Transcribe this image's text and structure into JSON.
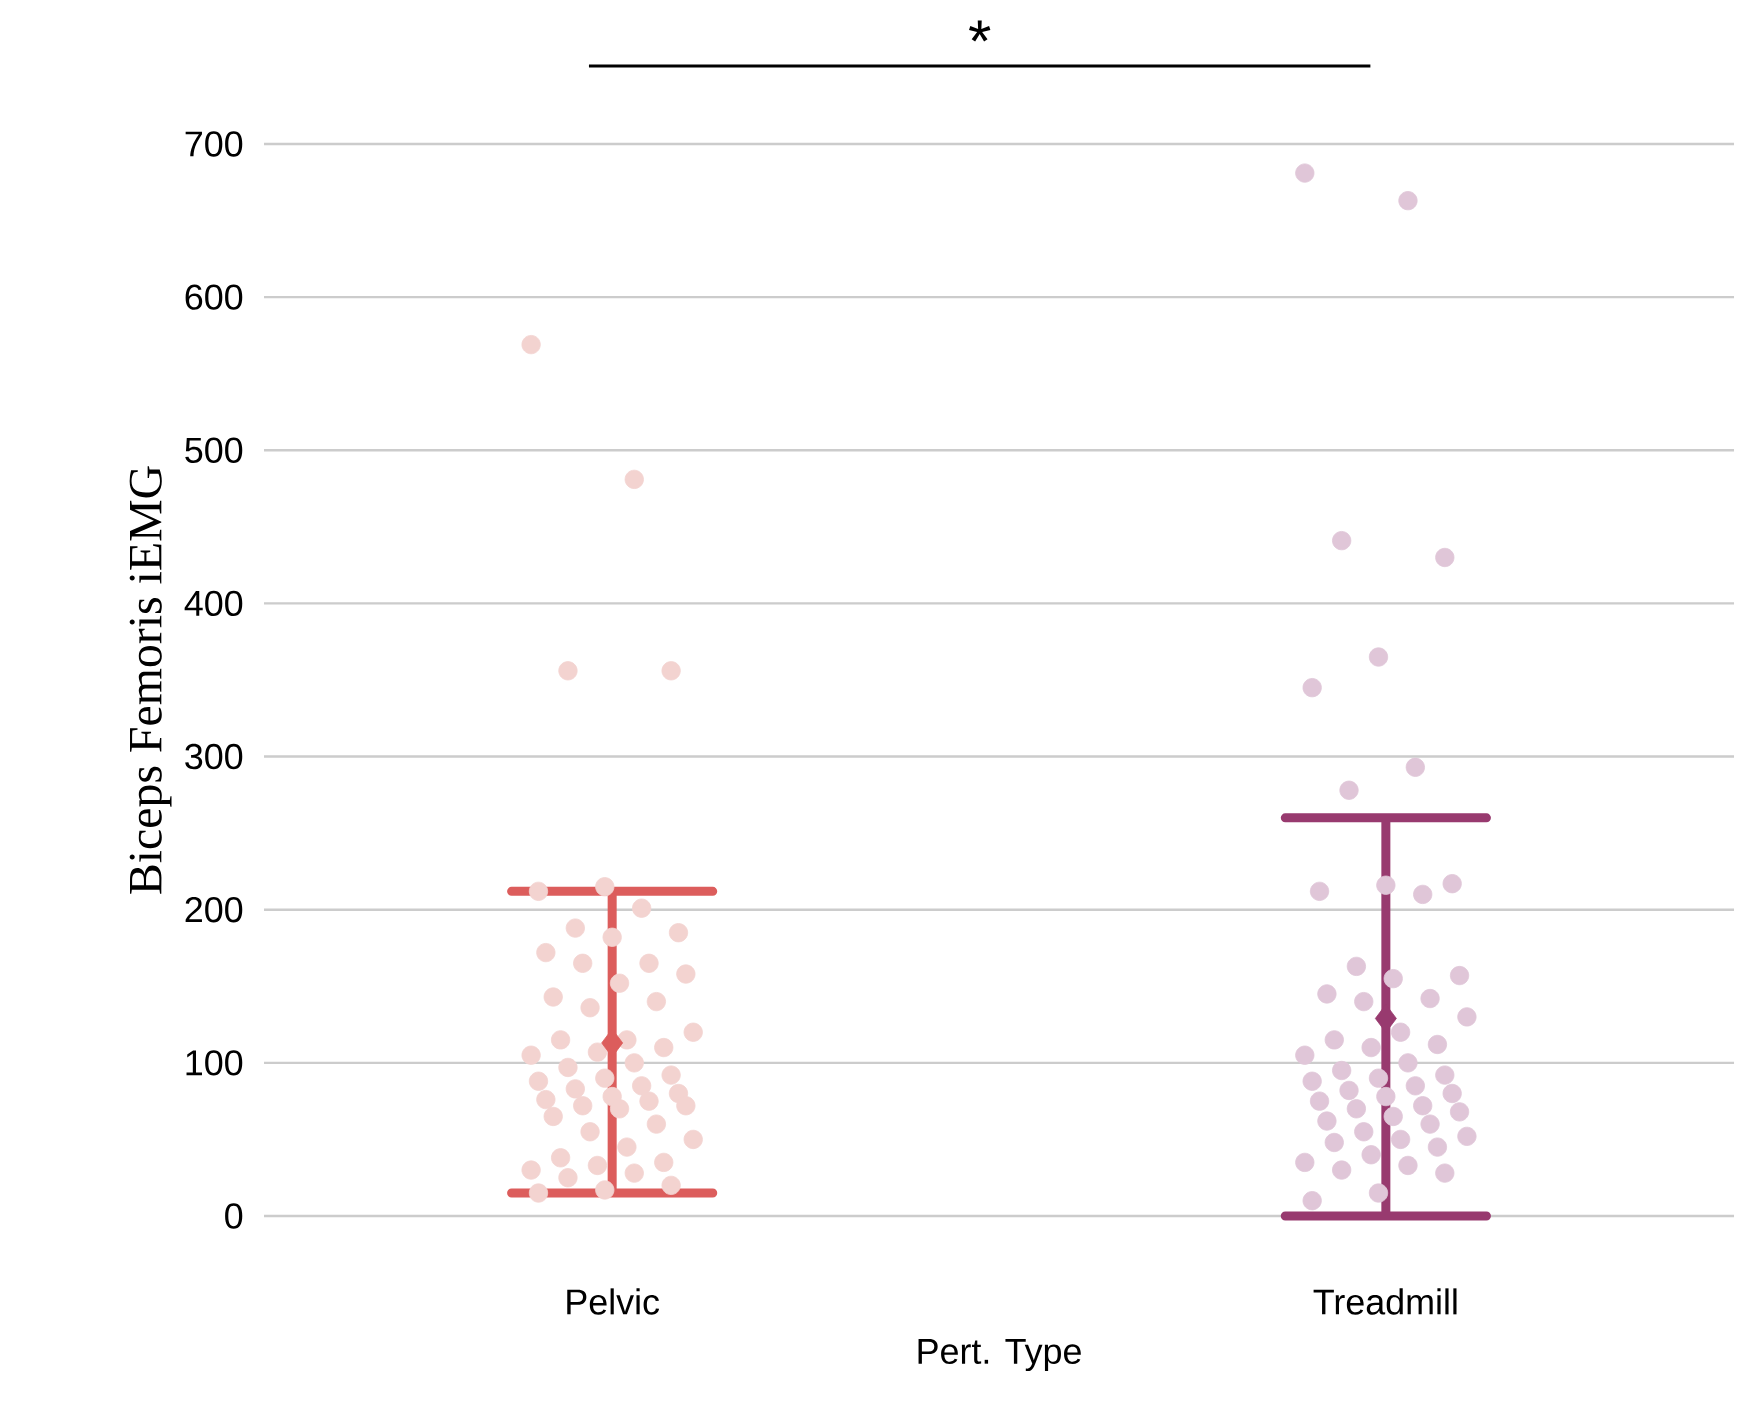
{
  "chart_data": {
    "type": "scatter",
    "xlabel": "Pert. Type",
    "ylabel": "Biceps Femoris iEMG",
    "categories": [
      "Pelvic",
      "Treadmill"
    ],
    "series": [
      {
        "color": "#f3d3d0",
        "x": [
          "Pelvic",
          "Pelvic",
          "Pelvic",
          "Pelvic",
          "Pelvic",
          "Pelvic",
          "Pelvic",
          "Pelvic",
          "Pelvic",
          "Pelvic",
          "Pelvic",
          "Pelvic",
          "Pelvic",
          "Pelvic",
          "Pelvic",
          "Pelvic",
          "Pelvic",
          "Pelvic",
          "Pelvic",
          "Pelvic",
          "Pelvic",
          "Pelvic",
          "Pelvic",
          "Pelvic",
          "Pelvic",
          "Pelvic",
          "Pelvic",
          "Pelvic",
          "Pelvic",
          "Pelvic",
          "Pelvic",
          "Pelvic",
          "Pelvic",
          "Pelvic",
          "Pelvic",
          "Pelvic",
          "Pelvic",
          "Pelvic",
          "Pelvic",
          "Pelvic",
          "Pelvic",
          "Pelvic",
          "Pelvic",
          "Pelvic",
          "Pelvic",
          "Pelvic",
          "Pelvic",
          "Pelvic",
          "Pelvic",
          "Pelvic",
          "Pelvic",
          "Pelvic"
        ],
        "values": [
          569,
          481,
          356,
          356,
          215,
          212,
          201,
          188,
          185,
          182,
          172,
          165,
          165,
          158,
          152,
          143,
          140,
          136,
          120,
          115,
          115,
          110,
          107,
          105,
          100,
          97,
          92,
          90,
          88,
          85,
          83,
          80,
          78,
          76,
          75,
          72,
          72,
          70,
          65,
          60,
          55,
          50,
          45,
          38,
          35,
          33,
          30,
          28,
          25,
          20,
          17,
          15
        ]
      },
      {
        "color": "#e0c6d8",
        "x": [
          "Treadmill",
          "Treadmill",
          "Treadmill",
          "Treadmill",
          "Treadmill",
          "Treadmill",
          "Treadmill",
          "Treadmill",
          "Treadmill",
          "Treadmill",
          "Treadmill",
          "Treadmill",
          "Treadmill",
          "Treadmill",
          "Treadmill",
          "Treadmill",
          "Treadmill",
          "Treadmill",
          "Treadmill",
          "Treadmill",
          "Treadmill",
          "Treadmill",
          "Treadmill",
          "Treadmill",
          "Treadmill",
          "Treadmill",
          "Treadmill",
          "Treadmill",
          "Treadmill",
          "Treadmill",
          "Treadmill",
          "Treadmill",
          "Treadmill",
          "Treadmill",
          "Treadmill",
          "Treadmill",
          "Treadmill",
          "Treadmill",
          "Treadmill",
          "Treadmill",
          "Treadmill",
          "Treadmill",
          "Treadmill",
          "Treadmill",
          "Treadmill",
          "Treadmill",
          "Treadmill",
          "Treadmill",
          "Treadmill",
          "Treadmill",
          "Treadmill",
          "Treadmill"
        ],
        "values": [
          681,
          663,
          441,
          430,
          365,
          345,
          293,
          278,
          217,
          216,
          212,
          210,
          163,
          157,
          155,
          145,
          142,
          140,
          130,
          120,
          115,
          112,
          110,
          105,
          100,
          95,
          92,
          90,
          88,
          85,
          82,
          80,
          78,
          75,
          72,
          70,
          68,
          65,
          62,
          60,
          55,
          52,
          50,
          48,
          45,
          40,
          35,
          33,
          30,
          28,
          15,
          10
        ]
      },
      {
        "marker": "diamond",
        "colors": [
          "#dc5d5c",
          "#983a6f"
        ],
        "x": [
          "Pelvic",
          "Treadmill"
        ],
        "values": [
          113,
          129
        ],
        "errors": [
          [
            15,
            212
          ],
          [
            0,
            260
          ]
        ]
      }
    ],
    "annotations": [
      "*"
    ],
    "ylim": [
      0,
      700
    ],
    "yticks": [
      0,
      100,
      200,
      300,
      400,
      500,
      600,
      700
    ],
    "grid": "y"
  }
}
